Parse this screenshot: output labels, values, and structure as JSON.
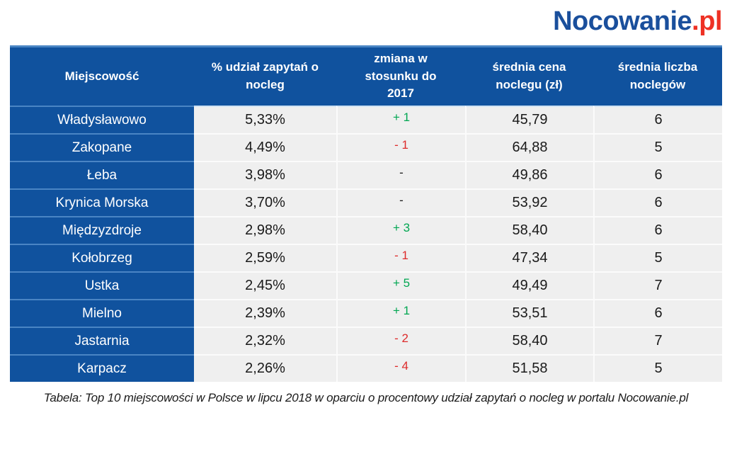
{
  "logo": {
    "main": "Nocowanie",
    "suffix": ".pl"
  },
  "colors": {
    "header_blue": "#10529e",
    "row_separator_blue": "#4a85c4",
    "cell_gray": "#efefef",
    "cell_separator_white": "#fbfbfb",
    "positive_green": "#00a651",
    "negative_red": "#dd2b2b",
    "logo_blue": "#1a4f9c",
    "logo_red": "#ee3124",
    "text_dark": "#1a1a1a"
  },
  "table": {
    "headers": {
      "city": "Miejscowość",
      "share": "% udział zapytań o nocleg",
      "change": "zmiana w stosunku do 2017",
      "price": "średnia cena noclegu (zł)",
      "nights": "średnia liczba noclegów"
    },
    "rows": [
      {
        "city": "Władysławowo",
        "share": "5,33%",
        "change": "+ 1",
        "change_dir": "up",
        "price": "45,79",
        "nights": "6"
      },
      {
        "city": "Zakopane",
        "share": "4,49%",
        "change": "- 1",
        "change_dir": "down",
        "price": "64,88",
        "nights": "5"
      },
      {
        "city": "Łeba",
        "share": "3,98%",
        "change": "-",
        "change_dir": "flat",
        "price": "49,86",
        "nights": "6"
      },
      {
        "city": "Krynica Morska",
        "share": "3,70%",
        "change": "-",
        "change_dir": "flat",
        "price": "53,92",
        "nights": "6"
      },
      {
        "city": "Międzyzdroje",
        "share": "2,98%",
        "change": "+ 3",
        "change_dir": "up",
        "price": "58,40",
        "nights": "6"
      },
      {
        "city": "Kołobrzeg",
        "share": "2,59%",
        "change": "- 1",
        "change_dir": "down",
        "price": "47,34",
        "nights": "5"
      },
      {
        "city": "Ustka",
        "share": "2,45%",
        "change": "+ 5",
        "change_dir": "up",
        "price": "49,49",
        "nights": "7"
      },
      {
        "city": "Mielno",
        "share": "2,39%",
        "change": "+ 1",
        "change_dir": "up",
        "price": "53,51",
        "nights": "6"
      },
      {
        "city": "Jastarnia",
        "share": "2,32%",
        "change": "- 2",
        "change_dir": "down",
        "price": "58,40",
        "nights": "7"
      },
      {
        "city": "Karpacz",
        "share": "2,26%",
        "change": "- 4",
        "change_dir": "down",
        "price": "51,58",
        "nights": "5"
      }
    ]
  },
  "caption": "Tabela: Top 10 miejscowości w Polsce w lipcu 2018 w oparciu o procentowy udział zapytań o nocleg w portalu Nocowanie.pl",
  "chart_data": {
    "type": "table",
    "title": "Top 10 miejscowości w Polsce w lipcu 2018 w oparciu o procentowy udział zapytań o nocleg w portalu Nocowanie.pl",
    "columns": [
      "Miejscowość",
      "% udział zapytań o nocleg",
      "zmiana w stosunku do 2017",
      "średnia cena noclegu (zł)",
      "średnia liczba noclegów"
    ],
    "rows": [
      [
        "Władysławowo",
        "5,33%",
        "+ 1",
        "45,79",
        "6"
      ],
      [
        "Zakopane",
        "4,49%",
        "- 1",
        "64,88",
        "5"
      ],
      [
        "Łeba",
        "3,98%",
        "-",
        "49,86",
        "6"
      ],
      [
        "Krynica Morska",
        "3,70%",
        "-",
        "53,92",
        "6"
      ],
      [
        "Międzyzdroje",
        "2,98%",
        "+ 3",
        "58,40",
        "6"
      ],
      [
        "Kołobrzeg",
        "2,59%",
        "- 1",
        "47,34",
        "5"
      ],
      [
        "Ustka",
        "2,45%",
        "+ 5",
        "49,49",
        "7"
      ],
      [
        "Mielno",
        "2,39%",
        "+ 1",
        "53,51",
        "6"
      ],
      [
        "Jastarnia",
        "2,32%",
        "- 2",
        "58,40",
        "7"
      ],
      [
        "Karpacz",
        "2,26%",
        "- 4",
        "51,58",
        "5"
      ]
    ]
  }
}
